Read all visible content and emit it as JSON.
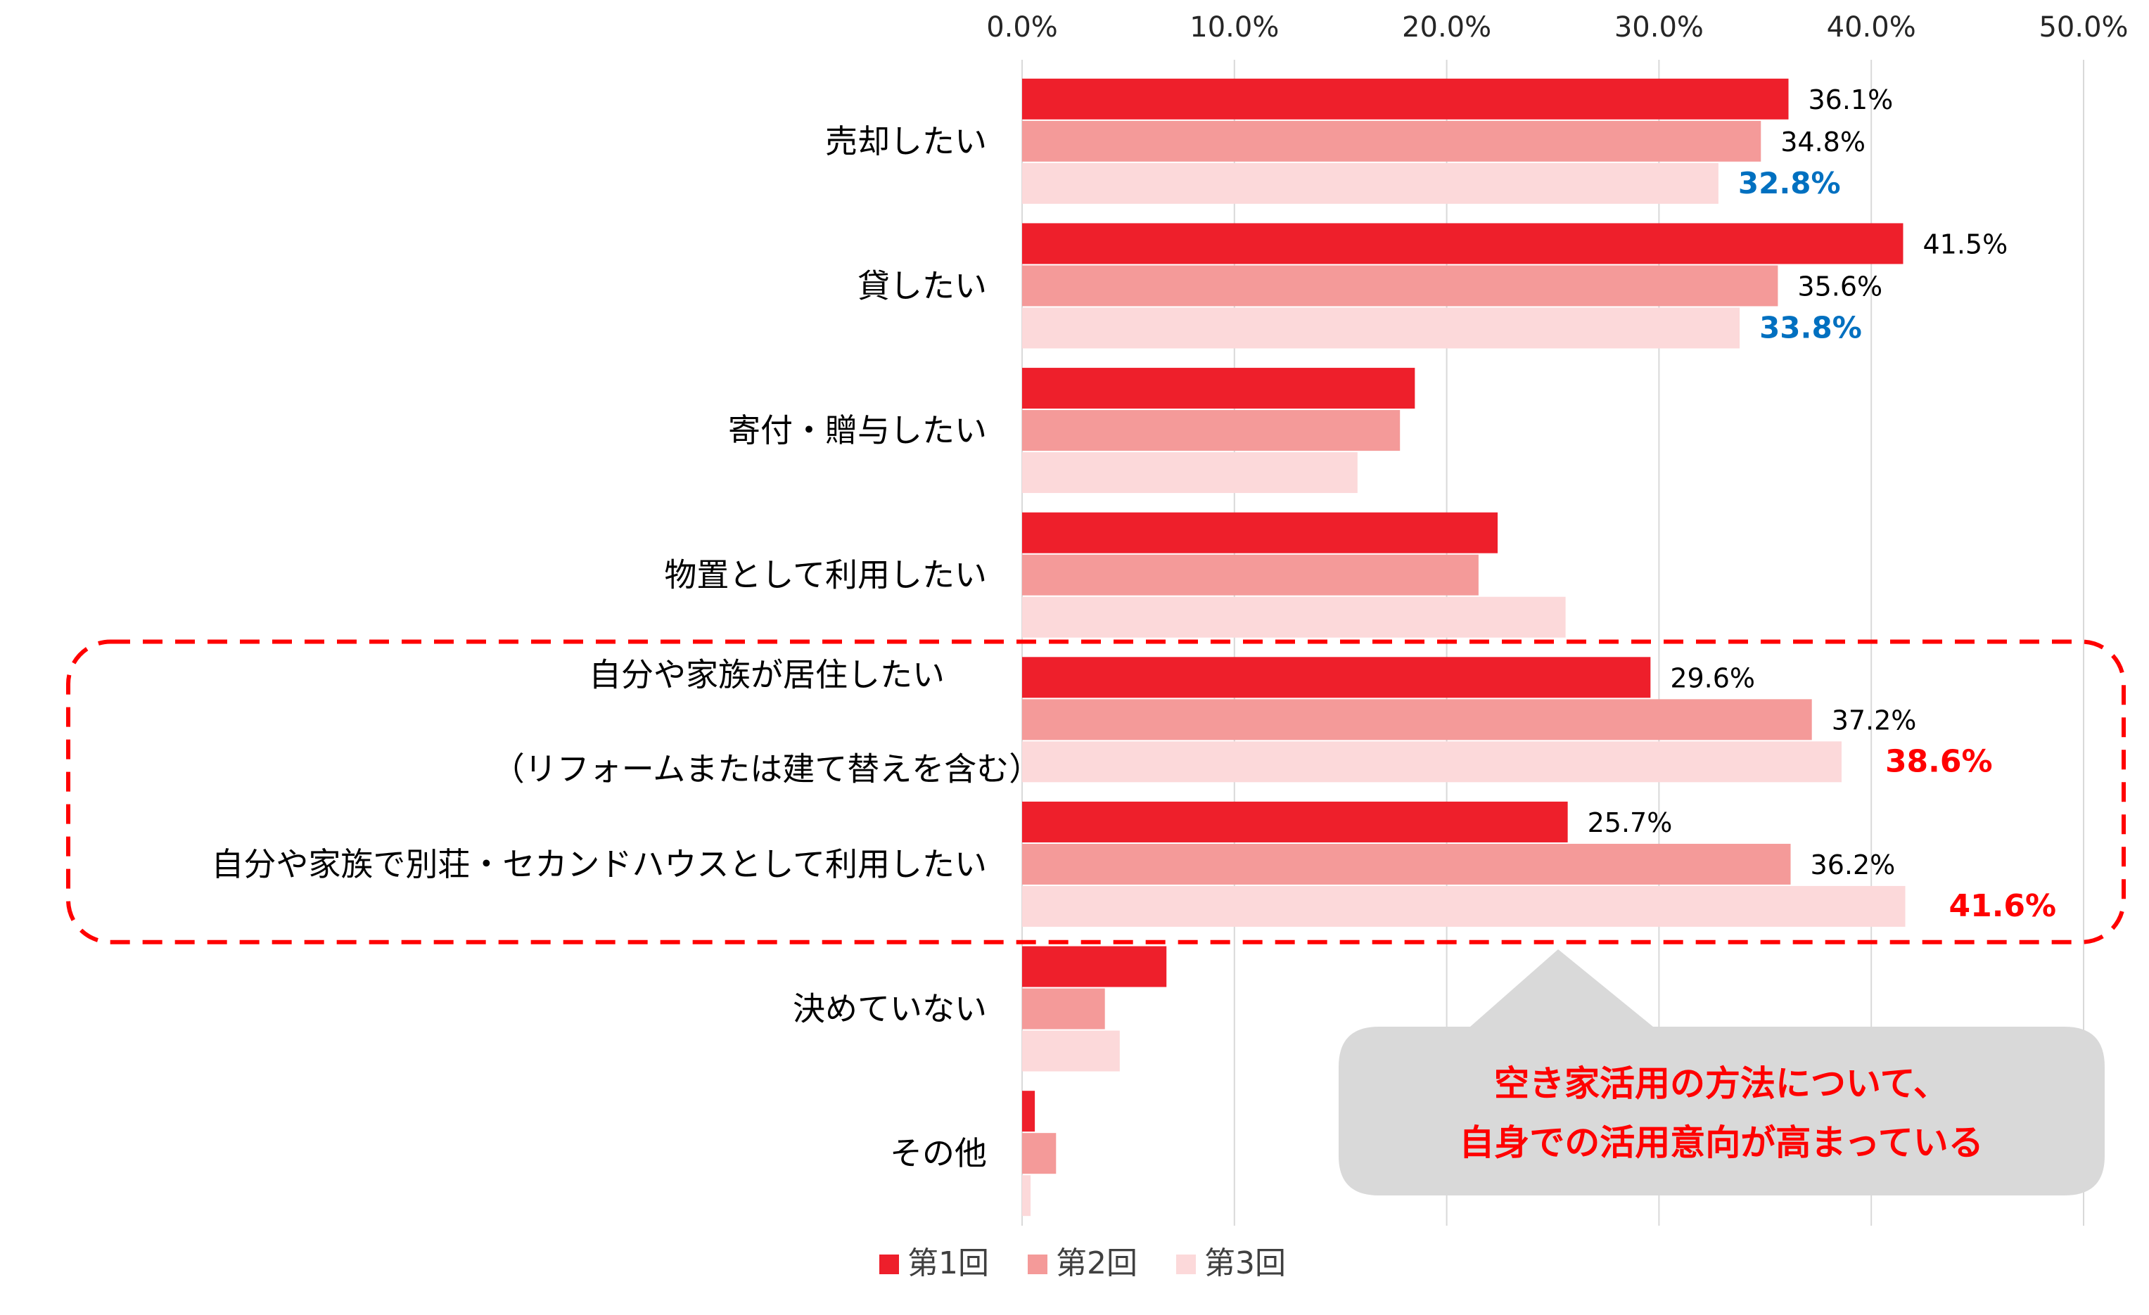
{
  "chart_data": {
    "type": "bar",
    "orientation": "horizontal",
    "categories": [
      "売却したい",
      "貸したい",
      "寄付・贈与したい",
      "物置として利用したい",
      [
        "自分や家族が居住したい",
        "（リフォームまたは建て替えを含む）"
      ],
      "自分や家族で別荘・セカンドハウスとして利用したい",
      "決めていない",
      "その他"
    ],
    "series": [
      {
        "name": "第1回",
        "color": "#ee1f2b",
        "values": [
          36.1,
          41.5,
          18.5,
          22.4,
          29.6,
          25.7,
          6.8,
          0.6
        ]
      },
      {
        "name": "第2回",
        "color": "#f49a99",
        "values": [
          34.8,
          35.6,
          17.8,
          21.5,
          37.2,
          36.2,
          3.9,
          1.6
        ]
      },
      {
        "name": "第3回",
        "color": "#fcd9da",
        "values": [
          32.8,
          33.8,
          15.8,
          25.6,
          38.6,
          41.6,
          4.6,
          0.4
        ]
      }
    ],
    "data_labels": [
      [
        "36.1%",
        "34.8%",
        "32.8%"
      ],
      [
        "41.5%",
        "35.6%",
        "33.8%"
      ],
      [
        null,
        null,
        null
      ],
      [
        null,
        null,
        null
      ],
      [
        "29.6%",
        "37.2%",
        "38.6%"
      ],
      [
        "25.7%",
        "36.2%",
        "41.6%"
      ],
      [
        null,
        null,
        null
      ],
      [
        null,
        null,
        null
      ]
    ],
    "highlight_labels": {
      "blue": [
        "32.8%",
        "33.8%"
      ],
      "red": [
        "38.6%",
        "41.6%"
      ],
      "blue_color": "#0070c0",
      "red_color": "#ff0000"
    },
    "xaxis": {
      "position": "top",
      "ticks": [
        "0.0%",
        "10.0%",
        "20.0%",
        "30.0%",
        "40.0%",
        "50.0%"
      ],
      "xlim": [
        0,
        50
      ]
    },
    "grid": "vertical",
    "legend": {
      "position": "bottom",
      "entries": [
        "第1回",
        "第2回",
        "第3回"
      ]
    },
    "highlight_box": {
      "style": "dashed",
      "color": "#ff0000",
      "covers_categories": [
        4,
        5
      ]
    },
    "callout": {
      "lines": [
        "空き家活用の方法について、",
        "自身での活用意向が高まっている"
      ],
      "text_color": "#ff0000",
      "background": "#d9d9d9"
    }
  }
}
